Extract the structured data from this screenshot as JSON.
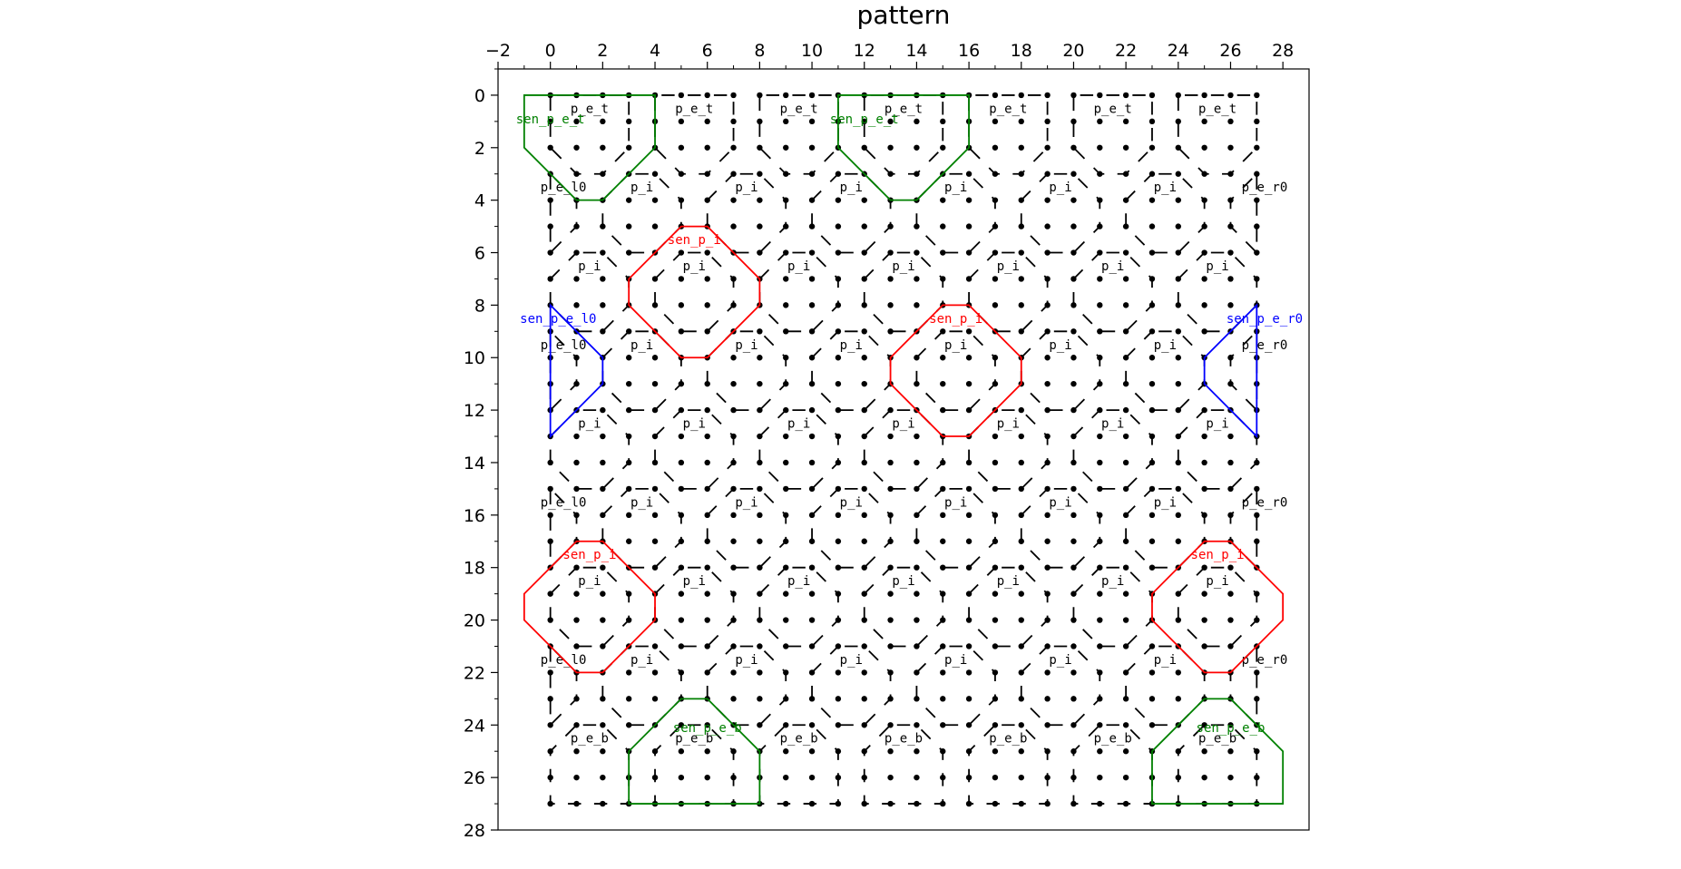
{
  "chart_data": {
    "type": "pattern",
    "title": "pattern",
    "xlim": [
      -2,
      29
    ],
    "ylim": [
      28,
      -1
    ],
    "xticks": [
      {
        "value": -2,
        "label": "−2"
      },
      0,
      2,
      4,
      6,
      8,
      10,
      12,
      14,
      16,
      18,
      20,
      22,
      24,
      26,
      28
    ],
    "yticks": [
      0,
      2,
      4,
      6,
      8,
      10,
      12,
      14,
      16,
      18,
      20,
      22,
      24,
      26,
      28
    ],
    "xminorticks": [
      -1,
      1,
      3,
      5,
      7,
      9,
      11,
      13,
      15,
      17,
      19,
      21,
      23,
      25,
      27
    ],
    "yminorticks": [
      -1,
      1,
      3,
      5,
      7,
      9,
      11,
      13,
      15,
      17,
      19,
      21,
      23,
      25,
      27
    ],
    "tile_color": "#000000",
    "tiles": [
      {
        "label": "p_e_t",
        "x": 1.5,
        "y": 1.5
      },
      {
        "label": "p_e_t",
        "x": 5.5,
        "y": 1.5
      },
      {
        "label": "p_e_t",
        "x": 9.5,
        "y": 1.5
      },
      {
        "label": "p_e_t",
        "x": 13.5,
        "y": 1.5
      },
      {
        "label": "p_e_t",
        "x": 17.5,
        "y": 1.5
      },
      {
        "label": "p_e_t",
        "x": 21.5,
        "y": 1.5
      },
      {
        "label": "p_e_t",
        "x": 25.5,
        "y": 1.5
      },
      {
        "label": "p_e_l0",
        "x": 0.5,
        "y": 4.5
      },
      {
        "label": "p_i",
        "x": 3.5,
        "y": 4.5
      },
      {
        "label": "p_i",
        "x": 7.5,
        "y": 4.5
      },
      {
        "label": "p_i",
        "x": 11.5,
        "y": 4.5
      },
      {
        "label": "p_i",
        "x": 15.5,
        "y": 4.5
      },
      {
        "label": "p_i",
        "x": 19.5,
        "y": 4.5
      },
      {
        "label": "p_i",
        "x": 23.5,
        "y": 4.5
      },
      {
        "label": "p_e_r0",
        "x": 26.5,
        "y": 4.5
      },
      {
        "label": "p_i",
        "x": 1.5,
        "y": 7.5
      },
      {
        "label": "p_i",
        "x": 5.5,
        "y": 7.5
      },
      {
        "label": "p_i",
        "x": 9.5,
        "y": 7.5
      },
      {
        "label": "p_i",
        "x": 13.5,
        "y": 7.5
      },
      {
        "label": "p_i",
        "x": 17.5,
        "y": 7.5
      },
      {
        "label": "p_i",
        "x": 21.5,
        "y": 7.5
      },
      {
        "label": "p_i",
        "x": 25.5,
        "y": 7.5
      },
      {
        "label": "p_e_l0",
        "x": 0.5,
        "y": 10.5
      },
      {
        "label": "p_i",
        "x": 3.5,
        "y": 10.5
      },
      {
        "label": "p_i",
        "x": 7.5,
        "y": 10.5
      },
      {
        "label": "p_i",
        "x": 11.5,
        "y": 10.5
      },
      {
        "label": "p_i",
        "x": 15.5,
        "y": 10.5
      },
      {
        "label": "p_i",
        "x": 19.5,
        "y": 10.5
      },
      {
        "label": "p_i",
        "x": 23.5,
        "y": 10.5
      },
      {
        "label": "p_e_r0",
        "x": 26.5,
        "y": 10.5
      },
      {
        "label": "p_i",
        "x": 1.5,
        "y": 13.5
      },
      {
        "label": "p_i",
        "x": 5.5,
        "y": 13.5
      },
      {
        "label": "p_i",
        "x": 9.5,
        "y": 13.5
      },
      {
        "label": "p_i",
        "x": 13.5,
        "y": 13.5
      },
      {
        "label": "p_i",
        "x": 17.5,
        "y": 13.5
      },
      {
        "label": "p_i",
        "x": 21.5,
        "y": 13.5
      },
      {
        "label": "p_i",
        "x": 25.5,
        "y": 13.5
      },
      {
        "label": "p_e_l0",
        "x": 0.5,
        "y": 16.5
      },
      {
        "label": "p_i",
        "x": 3.5,
        "y": 16.5
      },
      {
        "label": "p_i",
        "x": 7.5,
        "y": 16.5
      },
      {
        "label": "p_i",
        "x": 11.5,
        "y": 16.5
      },
      {
        "label": "p_i",
        "x": 15.5,
        "y": 16.5
      },
      {
        "label": "p_i",
        "x": 19.5,
        "y": 16.5
      },
      {
        "label": "p_i",
        "x": 23.5,
        "y": 16.5
      },
      {
        "label": "p_e_r0",
        "x": 26.5,
        "y": 16.5
      },
      {
        "label": "p_i",
        "x": 1.5,
        "y": 19.5
      },
      {
        "label": "p_i",
        "x": 5.5,
        "y": 19.5
      },
      {
        "label": "p_i",
        "x": 9.5,
        "y": 19.5
      },
      {
        "label": "p_i",
        "x": 13.5,
        "y": 19.5
      },
      {
        "label": "p_i",
        "x": 17.5,
        "y": 19.5
      },
      {
        "label": "p_i",
        "x": 21.5,
        "y": 19.5
      },
      {
        "label": "p_i",
        "x": 25.5,
        "y": 19.5
      },
      {
        "label": "p_e_l0",
        "x": 0.5,
        "y": 22.5
      },
      {
        "label": "p_i",
        "x": 3.5,
        "y": 22.5
      },
      {
        "label": "p_i",
        "x": 7.5,
        "y": 22.5
      },
      {
        "label": "p_i",
        "x": 11.5,
        "y": 22.5
      },
      {
        "label": "p_i",
        "x": 15.5,
        "y": 22.5
      },
      {
        "label": "p_i",
        "x": 19.5,
        "y": 22.5
      },
      {
        "label": "p_i",
        "x": 23.5,
        "y": 22.5
      },
      {
        "label": "p_e_r0",
        "x": 26.5,
        "y": 22.5
      },
      {
        "label": "p_e_b",
        "x": 1.5,
        "y": 25.5
      },
      {
        "label": "p_e_b",
        "x": 5.5,
        "y": 25.5
      },
      {
        "label": "p_e_b",
        "x": 9.5,
        "y": 25.5
      },
      {
        "label": "p_e_b",
        "x": 13.5,
        "y": 25.5
      },
      {
        "label": "p_e_b",
        "x": 17.5,
        "y": 25.5
      },
      {
        "label": "p_e_b",
        "x": 21.5,
        "y": 25.5
      },
      {
        "label": "p_e_b",
        "x": 25.5,
        "y": 25.5
      }
    ],
    "sensors": [
      {
        "label": "sen_p_e_t",
        "x": 1.5,
        "y": 1.5,
        "color": "#008000"
      },
      {
        "label": "sen_p_e_t",
        "x": 13.5,
        "y": 1.5,
        "color": "#008000"
      },
      {
        "label": "sen_p_i",
        "x": 5.5,
        "y": 7.5,
        "color": "#ff0000"
      },
      {
        "label": "sen_p_i",
        "x": 15.5,
        "y": 10.5,
        "color": "#ff0000"
      },
      {
        "label": "sen_p_e_l0",
        "x": 0.5,
        "y": 10.5,
        "color": "#0000ff"
      },
      {
        "label": "sen_p_e_r0",
        "x": 26.5,
        "y": 10.5,
        "color": "#0000ff"
      },
      {
        "label": "sen_p_i",
        "x": 1.5,
        "y": 19.5,
        "color": "#ff0000"
      },
      {
        "label": "sen_p_i",
        "x": 25.5,
        "y": 19.5,
        "color": "#ff0000"
      },
      {
        "label": "sen_p_e_b",
        "x": 5.5,
        "y": 25.5,
        "color": "#008000"
      },
      {
        "label": "sen_p_e_b",
        "x": 25.5,
        "y": 25.5,
        "color": "#008000"
      }
    ]
  }
}
